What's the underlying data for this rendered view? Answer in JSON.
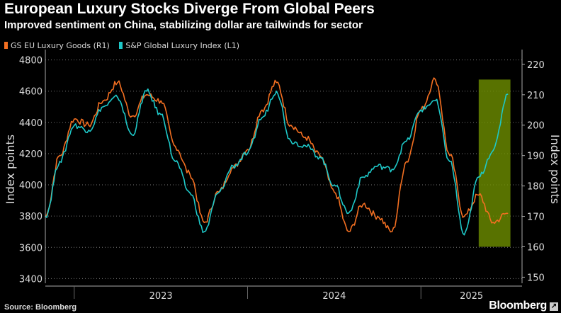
{
  "title": "European Luxury Stocks Diverge From Global Peers",
  "subtitle": "Improved sentiment on China, stabilizing dollar are tailwinds for sector",
  "source": "Source: Bloomberg",
  "brand": "Bloomberg",
  "brand_mark": "↗",
  "chart_data": {
    "type": "line",
    "x_labels": [
      "2023",
      "2024",
      "2025"
    ],
    "left_axis": {
      "label": "Index points",
      "ticks": [
        3400,
        3600,
        3800,
        4000,
        4200,
        4400,
        4600,
        4800
      ],
      "range": [
        3370,
        4830
      ]
    },
    "right_axis": {
      "label": "Index points",
      "ticks": [
        150,
        160,
        170,
        180,
        190,
        200,
        210,
        220
      ],
      "range": [
        148,
        223
      ]
    },
    "series": [
      {
        "name": "GS EU Luxury Goods (R1)",
        "axis": "right",
        "color": "#f36f21",
        "points": [
          [
            "2022-11",
            170
          ],
          [
            "2022-12",
            190
          ],
          [
            "2023-01",
            202
          ],
          [
            "2023-02",
            200
          ],
          [
            "2023-03",
            208
          ],
          [
            "2023-04",
            214
          ],
          [
            "2023-05",
            203
          ],
          [
            "2023-06",
            210
          ],
          [
            "2023-07",
            208
          ],
          [
            "2023-08",
            193
          ],
          [
            "2023-09",
            184
          ],
          [
            "2023-10",
            168
          ],
          [
            "2023-11",
            178
          ],
          [
            "2023-12",
            186
          ],
          [
            "2024-01",
            192
          ],
          [
            "2024-02",
            205
          ],
          [
            "2024-03",
            214
          ],
          [
            "2024-04",
            200
          ],
          [
            "2024-05",
            196
          ],
          [
            "2024-06",
            190
          ],
          [
            "2024-07",
            178
          ],
          [
            "2024-08",
            165
          ],
          [
            "2024-09",
            174
          ],
          [
            "2024-10",
            170
          ],
          [
            "2024-11",
            165
          ],
          [
            "2024-12",
            188
          ],
          [
            "2025-01",
            205
          ],
          [
            "2025-02",
            215
          ],
          [
            "2025-03",
            190
          ],
          [
            "2025-04",
            170
          ],
          [
            "2025-05",
            177
          ],
          [
            "2025-06",
            168
          ],
          [
            "2025-07",
            171
          ]
        ]
      },
      {
        "name": "S&P Global Luxury Index (L1)",
        "axis": "left",
        "color": "#1ec8c8",
        "points": [
          [
            "2022-11",
            3800
          ],
          [
            "2022-12",
            4150
          ],
          [
            "2023-01",
            4380
          ],
          [
            "2023-02",
            4350
          ],
          [
            "2023-03",
            4500
          ],
          [
            "2023-04",
            4560
          ],
          [
            "2023-05",
            4320
          ],
          [
            "2023-06",
            4600
          ],
          [
            "2023-07",
            4450
          ],
          [
            "2023-08",
            4150
          ],
          [
            "2023-09",
            3950
          ],
          [
            "2023-10",
            3700
          ],
          [
            "2023-11",
            3950
          ],
          [
            "2023-12",
            4120
          ],
          [
            "2024-01",
            4200
          ],
          [
            "2024-02",
            4430
          ],
          [
            "2024-03",
            4600
          ],
          [
            "2024-04",
            4280
          ],
          [
            "2024-05",
            4250
          ],
          [
            "2024-06",
            4180
          ],
          [
            "2024-07",
            4000
          ],
          [
            "2024-08",
            3820
          ],
          [
            "2024-09",
            4050
          ],
          [
            "2024-10",
            4120
          ],
          [
            "2024-11",
            4100
          ],
          [
            "2024-12",
            4280
          ],
          [
            "2025-01",
            4480
          ],
          [
            "2025-02",
            4540
          ],
          [
            "2025-03",
            4150
          ],
          [
            "2025-04",
            3680
          ],
          [
            "2025-05",
            4050
          ],
          [
            "2025-06",
            4220
          ],
          [
            "2025-07",
            4580
          ]
        ]
      }
    ],
    "highlight": {
      "from": "2025-05",
      "to": "2025-07",
      "color": "#6e8e00"
    }
  }
}
